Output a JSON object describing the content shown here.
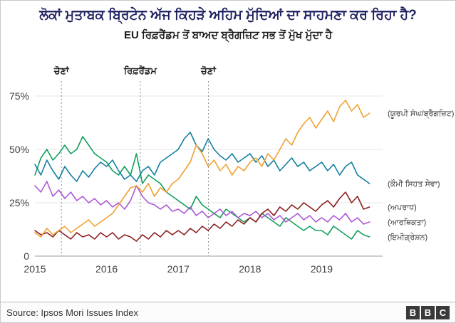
{
  "header": {
    "title": "ਲੋਕਾਂ ਮੁਤਾਬਕ ਬ੍ਰਿਟੇਨ ਅੱਜ ਕਿਹੜੇ ਅਹਿਮ ਮੁੱਦਿਆਂ ਦਾ ਸਾਹਮਣਾ ਕਰ ਰਿਹਾ ਹੈ?",
    "subtitle": "EU ਰਿਫ਼ਰੈਂਡਮ ਤੋਂ ਬਾਅਦ ਬ੍ਰੈਗਜ਼ਿਟ ਸਭ ਤੋਂ ਮੁੱਖ ਮੁੱਦਾ ਹੈ"
  },
  "footer": {
    "source": "Source: Ipsos Mori Issues Index",
    "logo_letters": [
      "B",
      "B",
      "C"
    ]
  },
  "colors": {
    "title": "#1e2060",
    "grid": "#e4e4e4",
    "baseline": "#9a9a9a",
    "event_line": "#8f8f8f",
    "axis_text": "#404040",
    "label_text": "#3d3d3d"
  },
  "chart_data": {
    "type": "line",
    "title": "",
    "xlabel": "",
    "ylabel": "",
    "x_start": 2015,
    "x_step_months": 1,
    "xlim": [
      2015,
      2019.85
    ],
    "ylim": [
      0,
      80
    ],
    "grid": true,
    "legend_position": "right",
    "yticks": [
      {
        "v": 0,
        "label": "0"
      },
      {
        "v": 25,
        "label": "25%"
      },
      {
        "v": 50,
        "label": "50%"
      },
      {
        "v": 75,
        "label": "75%"
      }
    ],
    "xticks": [
      2015,
      2016,
      2017,
      2018,
      2019
    ],
    "events": [
      {
        "x": 2015.37,
        "label": "ਚੋਣਾਂ"
      },
      {
        "x": 2016.47,
        "label": "ਰਿਫ਼ਰੈਂਡਮ"
      },
      {
        "x": 2017.42,
        "label": "ਚੋਣਾਂ"
      }
    ],
    "series": [
      {
        "name": "(ਯੂਰਪੀ ਸੰਘ/ਬ੍ਰੈਗਜ਼ਿਟ)",
        "id": "eu-brexit",
        "color": "#f0a132",
        "values": [
          11,
          9,
          13,
          10,
          12,
          14,
          11,
          13,
          15,
          17,
          14,
          16,
          18,
          20,
          24,
          28,
          32,
          33,
          30,
          34,
          28,
          32,
          30,
          34,
          36,
          40,
          44,
          52,
          48,
          42,
          45,
          40,
          43,
          38,
          42,
          40,
          44,
          46,
          42,
          48,
          45,
          50,
          55,
          52,
          58,
          62,
          65,
          60,
          64,
          68,
          63,
          70,
          73,
          68,
          71,
          65,
          67
        ]
      },
      {
        "name": "(ਕੌਮੀ ਸਿਹਤ ਸੇਵਾ)",
        "id": "nhs",
        "color": "#1380a1",
        "values": [
          43,
          38,
          45,
          40,
          36,
          42,
          38,
          35,
          40,
          37,
          41,
          44,
          42,
          45,
          40,
          36,
          38,
          35,
          40,
          42,
          38,
          44,
          46,
          48,
          50,
          55,
          58,
          52,
          49,
          55,
          50,
          47,
          45,
          48,
          44,
          46,
          48,
          44,
          47,
          42,
          45,
          40,
          43,
          46,
          42,
          44,
          40,
          42,
          44,
          40,
          43,
          38,
          42,
          44,
          38,
          36,
          34
        ]
      },
      {
        "name": "(ਅਪਰਾਧ)",
        "id": "crime",
        "color": "#8b1e1e",
        "values": [
          12,
          10,
          11,
          9,
          12,
          10,
          8,
          11,
          9,
          10,
          8,
          11,
          9,
          11,
          8,
          10,
          9,
          7,
          10,
          8,
          11,
          9,
          12,
          10,
          12,
          10,
          13,
          11,
          14,
          12,
          15,
          13,
          16,
          14,
          17,
          15,
          18,
          16,
          20,
          22,
          19,
          23,
          21,
          24,
          22,
          25,
          23,
          21,
          24,
          26,
          23,
          27,
          30,
          25,
          28,
          22,
          23
        ]
      },
      {
        "name": "(ਆਰਥਿਕਤਾ)",
        "id": "economy",
        "color": "#ab57d3",
        "values": [
          33,
          30,
          35,
          28,
          31,
          27,
          30,
          26,
          28,
          25,
          27,
          24,
          26,
          23,
          25,
          22,
          26,
          33,
          28,
          25,
          24,
          22,
          24,
          21,
          22,
          20,
          23,
          19,
          21,
          18,
          20,
          22,
          19,
          21,
          18,
          20,
          19,
          21,
          18,
          20,
          17,
          19,
          16,
          18,
          20,
          17,
          19,
          16,
          18,
          16,
          19,
          17,
          20,
          16,
          18,
          15,
          16
        ]
      },
      {
        "name": "(ਇਮੀਗ੍ਰੇਸ਼ਨ)",
        "id": "immigration",
        "color": "#12a05c",
        "values": [
          38,
          46,
          50,
          45,
          48,
          52,
          48,
          50,
          56,
          52,
          48,
          46,
          44,
          40,
          38,
          42,
          38,
          48,
          34,
          38,
          36,
          34,
          30,
          28,
          26,
          24,
          22,
          28,
          24,
          22,
          20,
          18,
          22,
          20,
          18,
          16,
          18,
          16,
          20,
          18,
          16,
          14,
          18,
          16,
          14,
          12,
          14,
          12,
          12,
          10,
          14,
          12,
          10,
          8,
          12,
          10,
          9
        ]
      }
    ]
  }
}
